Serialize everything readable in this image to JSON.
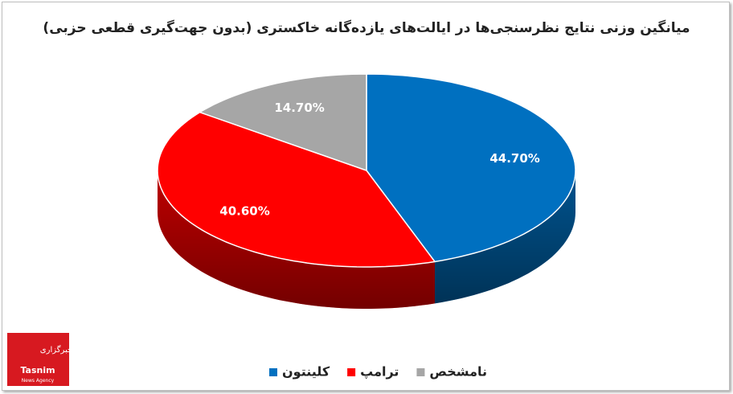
{
  "chart_data": {
    "type": "pie3d",
    "title": "میانگین وزنی نتایج نظرسنجی‌ها در ایالت‌های یازده‌گانه خاکستری (بدون جهت‌گیری قطعی حزبی)",
    "categories": [
      "کلینتون",
      "ترامپ",
      "نامشخص"
    ],
    "values": [
      44.7,
      40.6,
      14.7
    ],
    "value_labels": [
      "44.70%",
      "40.60%",
      "14.70%"
    ],
    "colors": [
      "#0070c0",
      "#ff0000",
      "#a6a6a6"
    ],
    "legend": "bottom"
  },
  "logo": {
    "name": "Tasnim",
    "tagline": "News Agency",
    "kicker": "خبرگزاری"
  }
}
